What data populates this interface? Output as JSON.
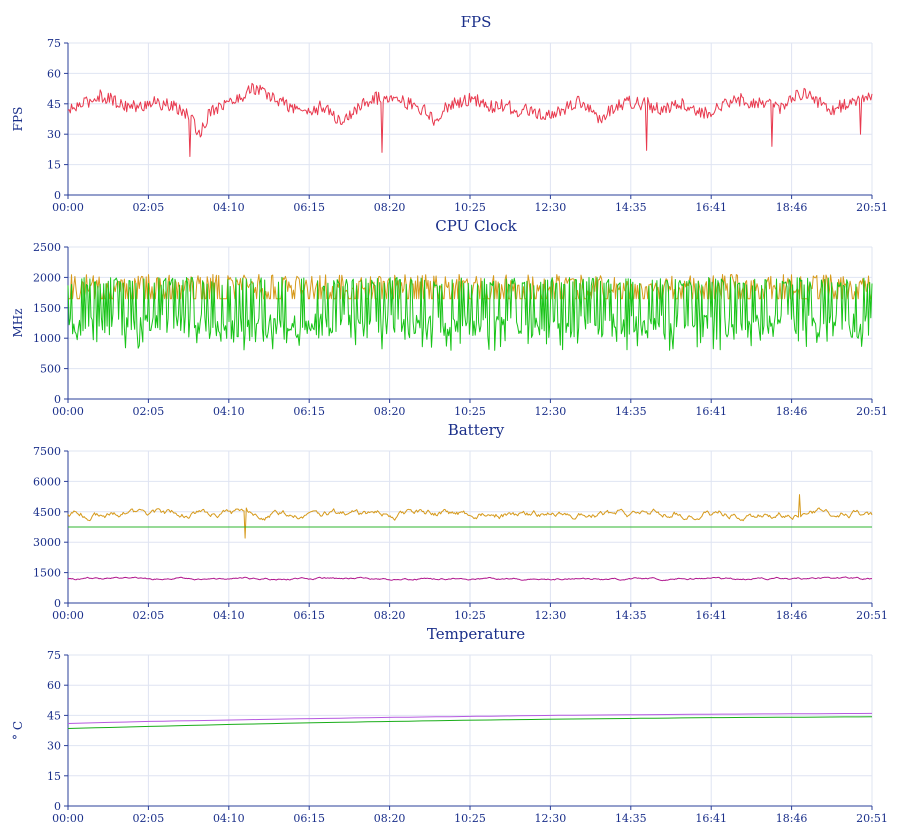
{
  "chart_data": [
    {
      "type": "line",
      "title": "FPS",
      "ylabel": "FPS",
      "ylim": [
        0,
        75
      ],
      "yticks": [
        "75",
        "60",
        "45",
        "30",
        "15",
        "0"
      ],
      "xlim": [
        "00:00",
        "20:51"
      ],
      "xticks": [
        "00:00",
        "02:05",
        "04:10",
        "06:15",
        "08:20",
        "10:25",
        "12:30",
        "14:35",
        "16:41",
        "18:46",
        "20:51"
      ],
      "grid": true,
      "series": [
        {
          "color": "#e8394e",
          "values": [
            41,
            44,
            46,
            49,
            48,
            45,
            44,
            43,
            46,
            45,
            44,
            42,
            38,
            30,
            42,
            44,
            46,
            48,
            53,
            51,
            48,
            46,
            43,
            42,
            41,
            44,
            39,
            36,
            41,
            45,
            48,
            47,
            50,
            46,
            44,
            42,
            36,
            43,
            45,
            47,
            47,
            44,
            43,
            45,
            41,
            42,
            40,
            38,
            41,
            43,
            46,
            44,
            37,
            41,
            44,
            46,
            45,
            45,
            42,
            43,
            46,
            44,
            40,
            41,
            44,
            45,
            47,
            46,
            45,
            44,
            43,
            48,
            50,
            49,
            45,
            42,
            44,
            47,
            47,
            48
          ],
          "dips": [
            [
              0.152,
              19
            ],
            [
              0.39,
              21
            ],
            [
              0.72,
              22
            ],
            [
              0.875,
              24
            ],
            [
              0.985,
              30
            ]
          ]
        }
      ]
    },
    {
      "type": "line",
      "title": "CPU Clock",
      "ylabel": "MHz",
      "ylim": [
        0,
        2500
      ],
      "yticks": [
        "2500",
        "2000",
        "1500",
        "1000",
        "500",
        "0"
      ],
      "xlim": [
        "00:00",
        "20:51"
      ],
      "xticks": [
        "00:00",
        "02:05",
        "04:10",
        "06:15",
        "08:20",
        "10:25",
        "12:30",
        "14:35",
        "16:41",
        "18:46",
        "20:51"
      ],
      "grid": true,
      "series": [
        {
          "color": "#d69a1c",
          "base": 1650,
          "range": [
            1650,
            2050
          ]
        },
        {
          "color": "#18c418",
          "base": 1950,
          "range": [
            700,
            2000
          ]
        }
      ]
    },
    {
      "type": "line",
      "title": "Battery",
      "ylabel": "",
      "ylim": [
        0,
        7500
      ],
      "yticks": [
        "7500",
        "6000",
        "4500",
        "3000",
        "1500",
        "0"
      ],
      "xlim": [
        "00:00",
        "20:51"
      ],
      "xticks": [
        "00:00",
        "02:05",
        "04:10",
        "06:15",
        "08:20",
        "10:25",
        "12:30",
        "14:35",
        "16:41",
        "18:46",
        "20:51"
      ],
      "grid": true,
      "series": [
        {
          "color": "#d69a1c",
          "base": 4400,
          "range": [
            3200,
            5350
          ]
        },
        {
          "color": "#2fb52f",
          "values": [
            3750,
            3750
          ]
        },
        {
          "color": "#b0178f",
          "base": 1200,
          "range": [
            950,
            1400
          ]
        }
      ]
    },
    {
      "type": "line",
      "title": "Temperature",
      "ylabel": "° C",
      "ylim": [
        0,
        75
      ],
      "yticks": [
        "75",
        "60",
        "45",
        "30",
        "15",
        "0"
      ],
      "xlim": [
        "00:00",
        "20:51"
      ],
      "xticks": [
        "00:00",
        "02:05",
        "04:10",
        "06:15",
        "08:20",
        "10:25",
        "12:30",
        "14:35",
        "16:41",
        "18:46",
        "20:51"
      ],
      "grid": true,
      "series": [
        {
          "color": "#b65ae0",
          "values": [
            41,
            42,
            42.7,
            43.4,
            44,
            44.5,
            45,
            45.3,
            45.6,
            45.8,
            46
          ]
        },
        {
          "color": "#19ad19",
          "values": [
            38.5,
            39.5,
            40.5,
            41.3,
            42,
            42.6,
            43.1,
            43.5,
            43.9,
            44.1,
            44.3
          ]
        }
      ]
    }
  ]
}
